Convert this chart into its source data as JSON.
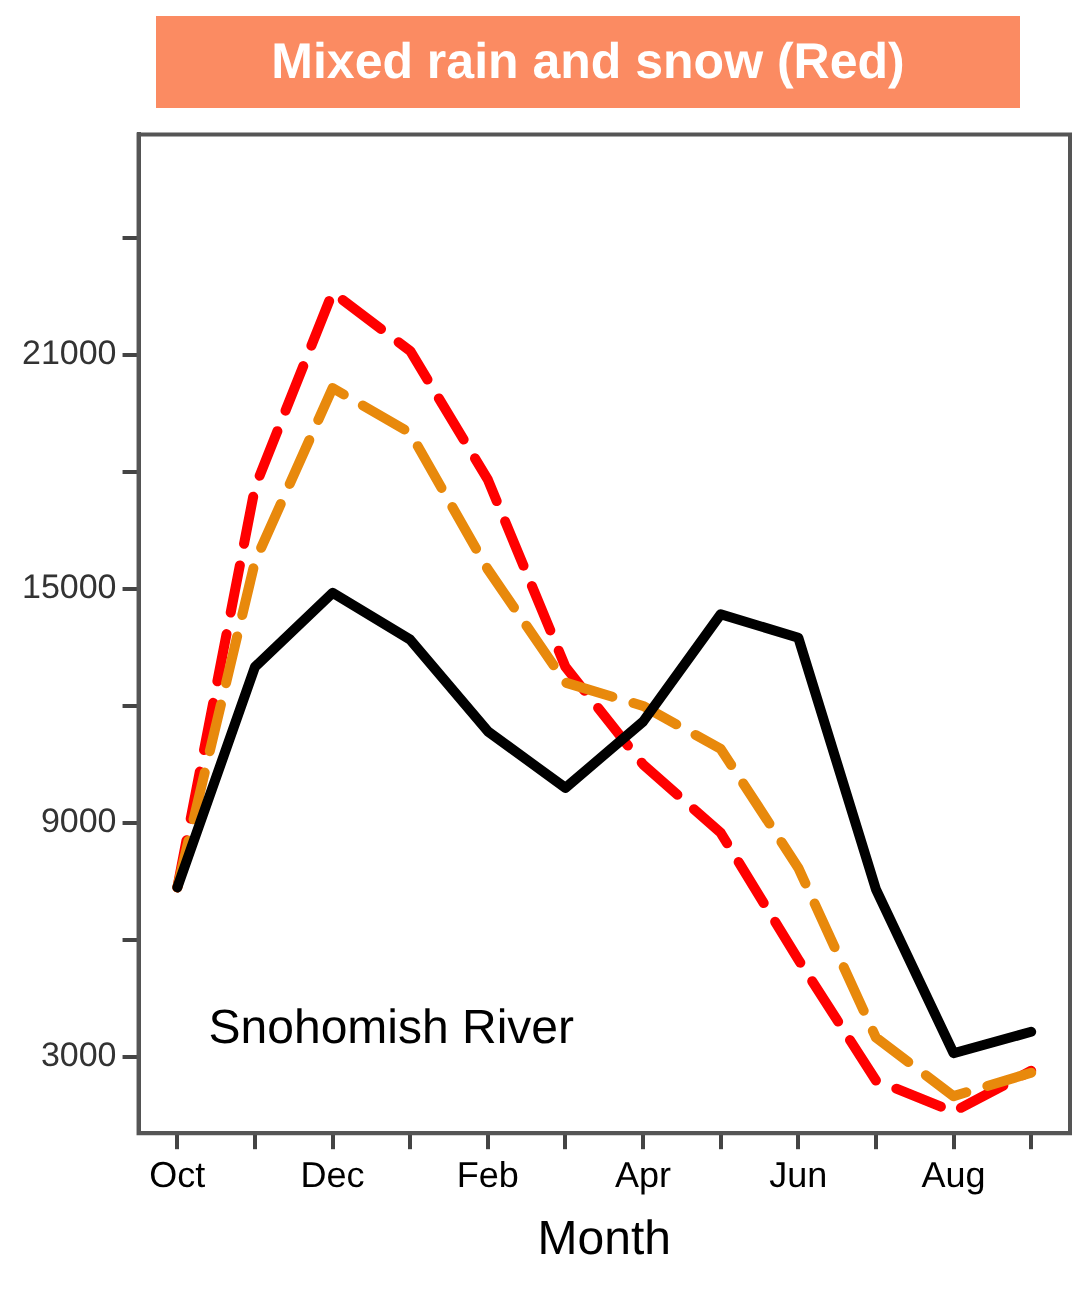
{
  "chart_data": {
    "type": "line",
    "title": "Mixed rain and snow (Red)",
    "xlabel": "Month",
    "categories": [
      "Oct",
      null,
      "Dec",
      null,
      "Feb",
      null,
      "Apr",
      null,
      "Jun",
      null,
      "Aug",
      null
    ],
    "series": [
      {
        "color": "#000000",
        "line_style": "solid",
        "values": [
          7350,
          13000,
          14900,
          13700,
          11350,
          9900,
          11600,
          14350,
          13750,
          7300,
          3100,
          3650
        ]
      },
      {
        "color": "#e8890c",
        "line_style": "dashed",
        "values": [
          7350,
          15700,
          20150,
          19000,
          15500,
          12600,
          12000,
          10900,
          7850,
          3500,
          2000,
          2600
        ]
      },
      {
        "color": "#ff0000",
        "line_style": "dashed",
        "values": [
          7350,
          17600,
          22600,
          21100,
          17800,
          13000,
          10500,
          8750,
          5500,
          2400,
          1600,
          2650
        ]
      }
    ],
    "ylim": [
      1050,
      26650
    ],
    "yticks": [
      3000,
      {
        "value": 6000,
        "label": null
      },
      9000,
      {
        "value": 12000,
        "label": null
      },
      15000,
      {
        "value": 18000,
        "label": null
      },
      21000,
      {
        "value": 24000,
        "label": null
      }
    ],
    "grid": false,
    "legend": false,
    "marker": "none",
    "annotations": [
      "Snohomish River"
    ]
  }
}
